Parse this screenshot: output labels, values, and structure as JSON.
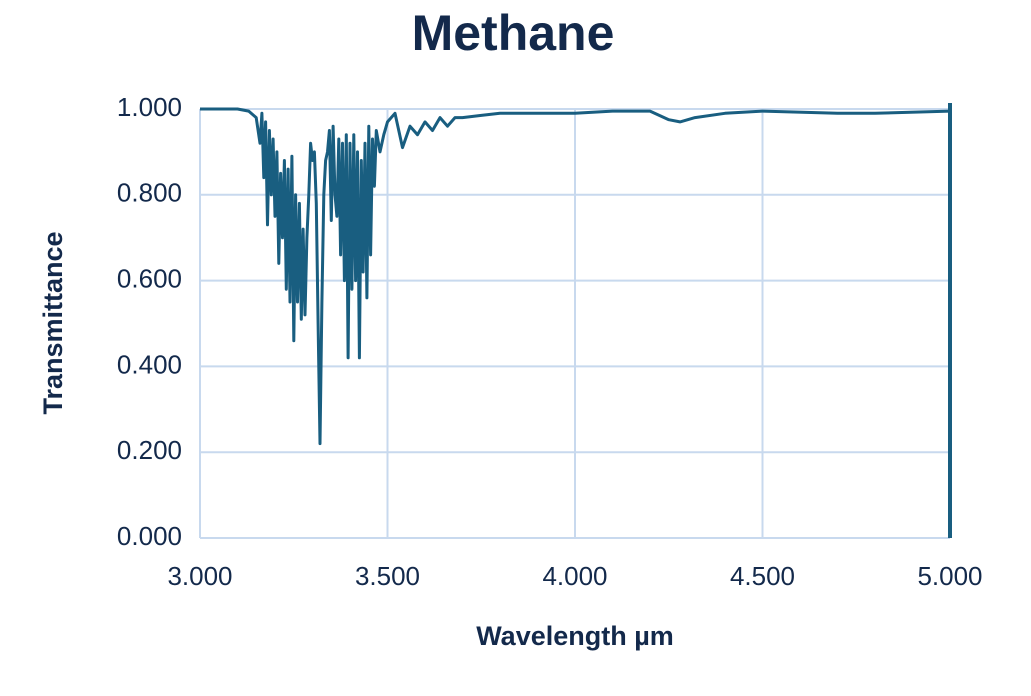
{
  "chart_data": {
    "type": "line",
    "title": "Methane",
    "x_label": "Wavelength µm",
    "y_label": "Transmittance",
    "color": "#195e80",
    "grid": true,
    "xlim": [
      3,
      5
    ],
    "ylim": [
      0,
      1
    ],
    "xticks": [
      {
        "value": 3,
        "label": "3.000"
      },
      {
        "value": 3.5,
        "label": "3.500"
      },
      {
        "value": 4,
        "label": "4.000"
      },
      {
        "value": 4.5,
        "label": "4.500"
      },
      {
        "value": 5,
        "label": "5.000"
      }
    ],
    "yticks": [
      {
        "value": 0,
        "label": "0.000"
      },
      {
        "value": 0.2,
        "label": "0.200"
      },
      {
        "value": 0.4,
        "label": "0.400"
      },
      {
        "value": 0.6,
        "label": "0.600"
      },
      {
        "value": 0.8,
        "label": "0.800"
      },
      {
        "value": 1,
        "label": "1.000"
      }
    ],
    "x": [
      3.0,
      3.1,
      3.13,
      3.15,
      3.16,
      3.165,
      3.17,
      3.175,
      3.18,
      3.185,
      3.19,
      3.195,
      3.2,
      3.205,
      3.21,
      3.215,
      3.22,
      3.225,
      3.23,
      3.235,
      3.24,
      3.245,
      3.25,
      3.255,
      3.26,
      3.265,
      3.27,
      3.275,
      3.28,
      3.285,
      3.29,
      3.295,
      3.3,
      3.305,
      3.31,
      3.315,
      3.32,
      3.325,
      3.33,
      3.335,
      3.34,
      3.345,
      3.35,
      3.355,
      3.36,
      3.365,
      3.37,
      3.375,
      3.38,
      3.385,
      3.39,
      3.395,
      3.4,
      3.405,
      3.41,
      3.415,
      3.42,
      3.425,
      3.43,
      3.435,
      3.44,
      3.445,
      3.45,
      3.455,
      3.46,
      3.465,
      3.47,
      3.48,
      3.49,
      3.5,
      3.52,
      3.54,
      3.56,
      3.58,
      3.6,
      3.62,
      3.64,
      3.66,
      3.68,
      3.7,
      3.75,
      3.8,
      3.9,
      4.0,
      4.1,
      4.2,
      4.25,
      4.28,
      4.32,
      4.4,
      4.5,
      4.7,
      4.8,
      5.0
    ],
    "values": [
      1.0,
      1.0,
      0.995,
      0.98,
      0.92,
      0.99,
      0.84,
      0.97,
      0.73,
      0.95,
      0.8,
      0.93,
      0.75,
      0.9,
      0.64,
      0.85,
      0.7,
      0.88,
      0.58,
      0.86,
      0.55,
      0.89,
      0.46,
      0.8,
      0.55,
      0.78,
      0.51,
      0.72,
      0.52,
      0.7,
      0.8,
      0.92,
      0.88,
      0.9,
      0.78,
      0.5,
      0.22,
      0.55,
      0.8,
      0.88,
      0.9,
      0.95,
      0.74,
      0.96,
      0.8,
      0.75,
      0.93,
      0.66,
      0.92,
      0.6,
      0.94,
      0.42,
      0.92,
      0.58,
      0.94,
      0.6,
      0.9,
      0.42,
      0.88,
      0.62,
      0.92,
      0.56,
      0.96,
      0.66,
      0.93,
      0.82,
      0.95,
      0.9,
      0.94,
      0.97,
      0.99,
      0.91,
      0.96,
      0.94,
      0.97,
      0.95,
      0.98,
      0.96,
      0.98,
      0.98,
      0.985,
      0.99,
      0.99,
      0.99,
      0.995,
      0.995,
      0.975,
      0.97,
      0.98,
      0.99,
      0.995,
      0.99,
      0.99,
      0.995
    ]
  }
}
